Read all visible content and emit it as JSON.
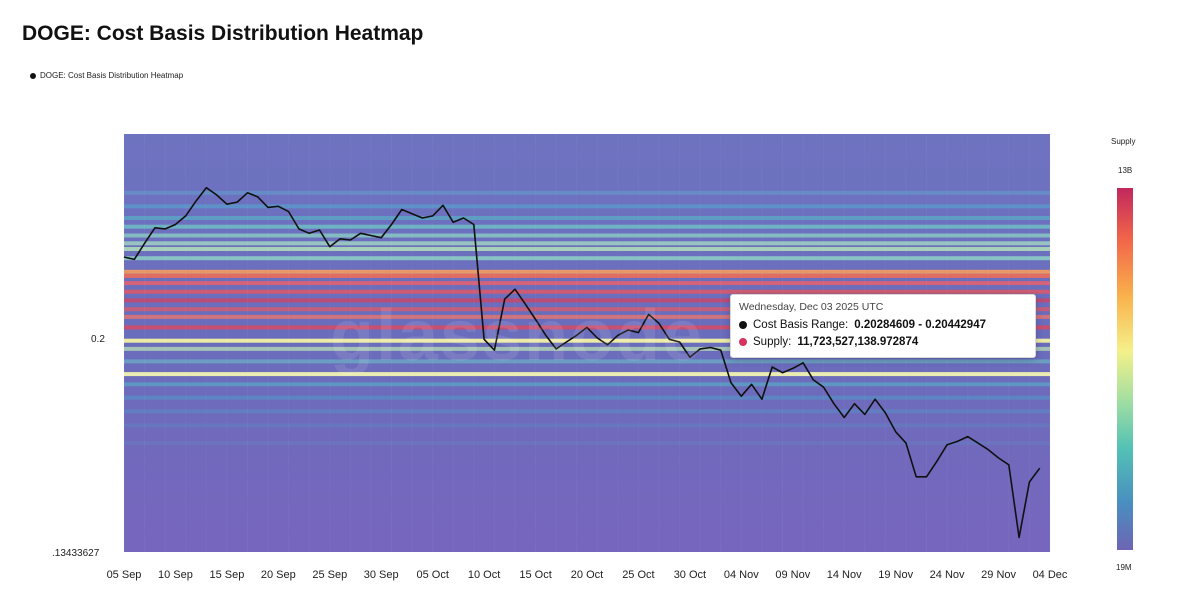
{
  "chart_data": {
    "type": "heatmap",
    "title": "DOGE: Cost Basis Distribution Heatmap",
    "legend": [
      {
        "label": "DOGE: Cost Basis Distribution Heatmap",
        "color": "#111111"
      }
    ],
    "x_tick_labels": [
      "05 Sep",
      "10 Sep",
      "15 Sep",
      "20 Sep",
      "25 Sep",
      "30 Sep",
      "05 Oct",
      "10 Oct",
      "15 Oct",
      "20 Oct",
      "25 Oct",
      "30 Oct",
      "04 Nov",
      "09 Nov",
      "14 Nov",
      "19 Nov",
      "24 Nov",
      "29 Nov",
      "04 Dec"
    ],
    "xlim": [
      "2025-09-05",
      "2025-12-04"
    ],
    "y_tick_labels": [
      "0.2",
      ".13433627"
    ],
    "y_scale": "log",
    "colorbar": {
      "title": "Supply",
      "max_label": "13B",
      "min_label": "19M",
      "colors": [
        "#c2275d",
        "#f2644a",
        "#f9b24c",
        "#f5f08a",
        "#a6e0a0",
        "#53c1b5",
        "#4a8ec0",
        "#6d65b4"
      ]
    },
    "price_series": {
      "name": "DOGE: Cost Basis Distribution Heatmap",
      "color": "#111111",
      "points": [
        [
          "2025-09-05",
          0.2325
        ],
        [
          "2025-09-06",
          0.2315
        ],
        [
          "2025-09-07",
          0.2385
        ],
        [
          "2025-09-08",
          0.2455
        ],
        [
          "2025-09-09",
          0.245
        ],
        [
          "2025-09-10",
          0.247
        ],
        [
          "2025-09-11",
          0.251
        ],
        [
          "2025-09-12",
          0.258
        ],
        [
          "2025-09-13",
          0.2645
        ],
        [
          "2025-09-14",
          0.261
        ],
        [
          "2025-09-15",
          0.2565
        ],
        [
          "2025-09-16",
          0.2575
        ],
        [
          "2025-09-17",
          0.262
        ],
        [
          "2025-09-18",
          0.26
        ],
        [
          "2025-09-19",
          0.255
        ],
        [
          "2025-09-20",
          0.2555
        ],
        [
          "2025-09-21",
          0.253
        ],
        [
          "2025-09-22",
          0.245
        ],
        [
          "2025-09-23",
          0.243
        ],
        [
          "2025-09-24",
          0.2445
        ],
        [
          "2025-09-25",
          0.237
        ],
        [
          "2025-09-26",
          0.2405
        ],
        [
          "2025-09-27",
          0.24
        ],
        [
          "2025-09-28",
          0.243
        ],
        [
          "2025-09-29",
          0.242
        ],
        [
          "2025-09-30",
          0.241
        ],
        [
          "2025-10-01",
          0.247
        ],
        [
          "2025-10-02",
          0.254
        ],
        [
          "2025-10-03",
          0.252
        ],
        [
          "2025-10-04",
          0.25
        ],
        [
          "2025-10-05",
          0.251
        ],
        [
          "2025-10-06",
          0.256
        ],
        [
          "2025-10-07",
          0.248
        ],
        [
          "2025-10-08",
          0.25
        ],
        [
          "2025-10-09",
          0.247
        ],
        [
          "2025-10-10",
          0.1995
        ],
        [
          "2025-10-11",
          0.1955
        ],
        [
          "2025-10-12",
          0.215
        ],
        [
          "2025-10-13",
          0.219
        ],
        [
          "2025-10-14",
          0.213
        ],
        [
          "2025-10-15",
          0.207
        ],
        [
          "2025-10-16",
          0.201
        ],
        [
          "2025-10-17",
          0.196
        ],
        [
          "2025-10-18",
          0.1985
        ],
        [
          "2025-10-19",
          0.201
        ],
        [
          "2025-10-20",
          0.204
        ],
        [
          "2025-10-21",
          0.2
        ],
        [
          "2025-10-22",
          0.1975
        ],
        [
          "2025-10-23",
          0.201
        ],
        [
          "2025-10-24",
          0.203
        ],
        [
          "2025-10-25",
          0.202
        ],
        [
          "2025-10-26",
          0.209
        ],
        [
          "2025-10-27",
          0.2055
        ],
        [
          "2025-10-28",
          0.1995
        ],
        [
          "2025-10-29",
          0.1985
        ],
        [
          "2025-10-30",
          0.193
        ],
        [
          "2025-10-31",
          0.196
        ],
        [
          "2025-11-01",
          0.1965
        ],
        [
          "2025-11-02",
          0.1955
        ],
        [
          "2025-11-03",
          0.184
        ],
        [
          "2025-11-04",
          0.1795
        ],
        [
          "2025-11-05",
          0.1835
        ],
        [
          "2025-11-06",
          0.1785
        ],
        [
          "2025-11-07",
          0.1895
        ],
        [
          "2025-11-08",
          0.1875
        ],
        [
          "2025-11-09",
          0.189
        ],
        [
          "2025-11-10",
          0.191
        ],
        [
          "2025-11-11",
          0.185
        ],
        [
          "2025-11-12",
          0.1825
        ],
        [
          "2025-11-13",
          0.177
        ],
        [
          "2025-11-14",
          0.1725
        ],
        [
          "2025-11-15",
          0.177
        ],
        [
          "2025-11-16",
          0.1735
        ],
        [
          "2025-11-17",
          0.1785
        ],
        [
          "2025-11-18",
          0.174
        ],
        [
          "2025-11-19",
          0.168
        ],
        [
          "2025-11-20",
          0.1645
        ],
        [
          "2025-11-21",
          0.1545
        ],
        [
          "2025-11-22",
          0.1545
        ],
        [
          "2025-11-23",
          0.159
        ],
        [
          "2025-11-24",
          0.164
        ],
        [
          "2025-11-25",
          0.165
        ],
        [
          "2025-11-26",
          0.1665
        ],
        [
          "2025-11-27",
          0.1645
        ],
        [
          "2025-11-28",
          0.1625
        ],
        [
          "2025-11-29",
          0.16
        ],
        [
          "2025-11-30",
          0.158
        ],
        [
          "2025-12-01",
          0.138
        ],
        [
          "2025-12-02",
          0.153
        ],
        [
          "2025-12-03",
          0.157
        ]
      ]
    },
    "bands": [
      {
        "price": 0.262,
        "color": "#5eaad0",
        "opacity": 0.45
      },
      {
        "price": 0.2555,
        "color": "#4fb2cf",
        "opacity": 0.5
      },
      {
        "price": 0.25,
        "color": "#53c1c6",
        "opacity": 0.55
      },
      {
        "price": 0.246,
        "color": "#6fd0c4",
        "opacity": 0.7
      },
      {
        "price": 0.242,
        "color": "#8fdcc4",
        "opacity": 0.7
      },
      {
        "price": 0.2385,
        "color": "#a6e0c0",
        "opacity": 0.75
      },
      {
        "price": 0.236,
        "color": "#b8e8b8",
        "opacity": 0.8
      },
      {
        "price": 0.232,
        "color": "#8fd8c6",
        "opacity": 0.8
      },
      {
        "price": 0.2262,
        "color": "#f59c5c",
        "opacity": 0.9
      },
      {
        "price": 0.2245,
        "color": "#ee6d58",
        "opacity": 0.9
      },
      {
        "price": 0.2215,
        "color": "#e46270",
        "opacity": 0.85
      },
      {
        "price": 0.218,
        "color": "#df5866",
        "opacity": 0.85
      },
      {
        "price": 0.2145,
        "color": "#c8476a",
        "opacity": 0.85
      },
      {
        "price": 0.211,
        "color": "#d85a6c",
        "opacity": 0.8
      },
      {
        "price": 0.208,
        "color": "#e8746c",
        "opacity": 0.8
      },
      {
        "price": 0.204,
        "color": "#d94a64",
        "opacity": 0.85
      },
      {
        "price": 0.199,
        "color": "#f3f2a4",
        "opacity": 0.95
      },
      {
        "price": 0.196,
        "color": "#bde8b4",
        "opacity": 0.7
      },
      {
        "price": 0.1915,
        "color": "#6cc7c6",
        "opacity": 0.55
      },
      {
        "price": 0.187,
        "color": "#f1f3b0",
        "opacity": 0.95
      },
      {
        "price": 0.1835,
        "color": "#52b8c9",
        "opacity": 0.55
      },
      {
        "price": 0.179,
        "color": "#4aa6cc",
        "opacity": 0.45
      },
      {
        "price": 0.1745,
        "color": "#4f9cc8",
        "opacity": 0.4
      },
      {
        "price": 0.17,
        "color": "#5a90c4",
        "opacity": 0.35
      },
      {
        "price": 0.1645,
        "color": "#5f8ac0",
        "opacity": 0.3
      }
    ]
  },
  "tooltip": {
    "date": "Wednesday, Dec 03 2025 UTC",
    "rows": [
      {
        "label": "Cost Basis Range:",
        "value": "0.20284609 - 0.20442947",
        "color": "#111111"
      },
      {
        "label": "Supply:",
        "value": "11,723,527,138.972874",
        "color": "#d6335f"
      }
    ]
  },
  "watermark": "glassnode"
}
